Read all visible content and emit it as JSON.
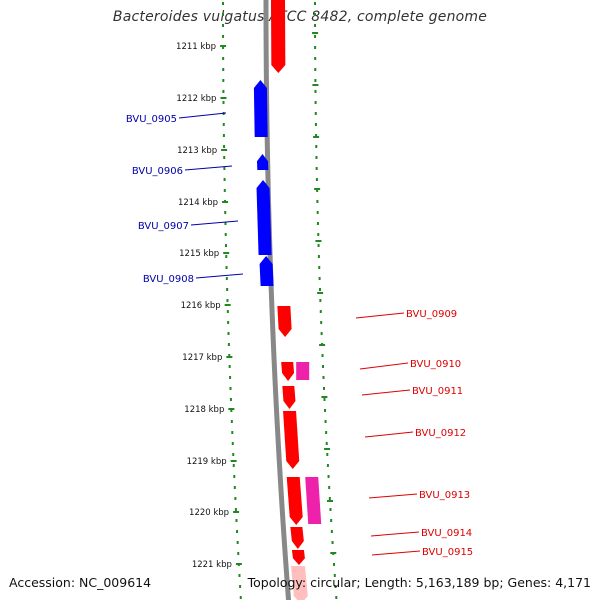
{
  "title": "Bacteroides vulgatus ATCC 8482, complete genome",
  "footer": {
    "accession": "Accession: NC_009614",
    "stats": "Topology: circular; Length: 5,163,189 bp; Genes: 4,171"
  },
  "ruler_ticks": [
    "1211 kbp",
    "1212 kbp",
    "1213 kbp",
    "1214 kbp",
    "1215 kbp",
    "1216 kbp",
    "1217 kbp",
    "1218 kbp",
    "1219 kbp",
    "1220 kbp",
    "1221 kbp"
  ],
  "genes_left": [
    {
      "label": "BVU_0905"
    },
    {
      "label": "BVU_0906"
    },
    {
      "label": "BVU_0907"
    },
    {
      "label": "BVU_0908"
    }
  ],
  "genes_right": [
    {
      "label": "BVU_0909"
    },
    {
      "label": "BVU_0910"
    },
    {
      "label": "BVU_0911"
    },
    {
      "label": "BVU_0912"
    },
    {
      "label": "BVU_0913"
    },
    {
      "label": "BVU_0914"
    },
    {
      "label": "BVU_0915"
    }
  ],
  "colors": {
    "forward_gene": "#ff0000",
    "reverse_gene": "#0000ff",
    "rna_gene": "#ee22aa",
    "backbone": "#888888",
    "dots": "#228822",
    "left_label": "#0000aa",
    "right_label": "#dd0000"
  }
}
